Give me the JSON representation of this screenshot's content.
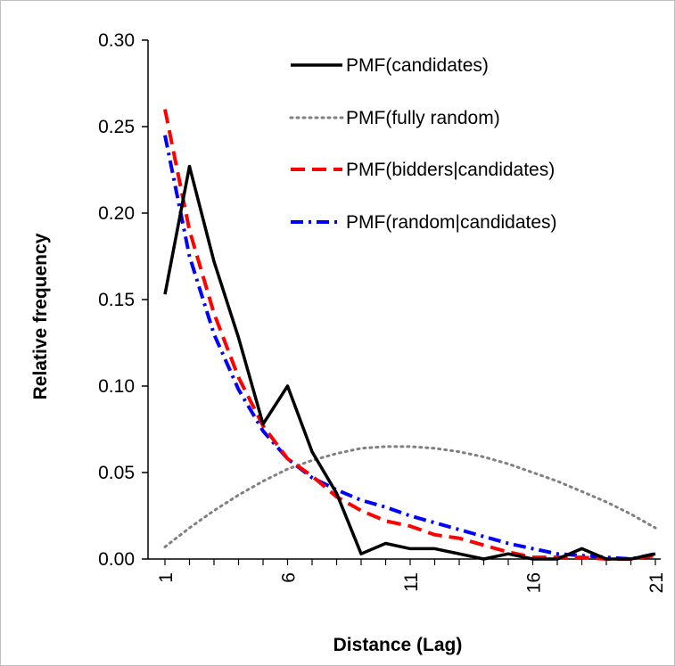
{
  "chart_data": {
    "type": "line",
    "xlabel": "Distance (Lag)",
    "ylabel": "Relative frequency",
    "xlim": [
      1,
      21
    ],
    "ylim": [
      0,
      0.3
    ],
    "x_ticks": [
      1,
      6,
      11,
      16,
      21
    ],
    "y_ticks": [
      "0.00",
      "0.05",
      "0.10",
      "0.15",
      "0.20",
      "0.25",
      "0.30"
    ],
    "legend_position": "top-right",
    "grid": false,
    "series": [
      {
        "name": "PMF(candidates)",
        "color": "#000000",
        "style": "solid",
        "x": [
          1,
          2,
          3,
          4,
          5,
          6,
          7,
          8,
          9,
          10,
          11,
          12,
          13,
          14,
          15,
          16,
          17,
          18,
          19,
          20,
          21
        ],
        "values": [
          0.153,
          0.227,
          0.172,
          0.128,
          0.078,
          0.1,
          0.062,
          0.038,
          0.003,
          0.009,
          0.006,
          0.006,
          0.003,
          0.0,
          0.003,
          0.0,
          0.0,
          0.006,
          0.0,
          0.0,
          0.003
        ]
      },
      {
        "name": "PMF(fully random)",
        "color": "#808080",
        "style": "dotted",
        "x": [
          1,
          2,
          3,
          4,
          5,
          6,
          7,
          8,
          9,
          10,
          11,
          12,
          13,
          14,
          15,
          16,
          17,
          18,
          19,
          20,
          21
        ],
        "values": [
          0.007,
          0.018,
          0.028,
          0.037,
          0.045,
          0.052,
          0.057,
          0.061,
          0.064,
          0.065,
          0.065,
          0.064,
          0.062,
          0.059,
          0.055,
          0.05,
          0.045,
          0.039,
          0.033,
          0.026,
          0.018
        ]
      },
      {
        "name": "PMF(bidders|candidates)",
        "color": "#ff0000",
        "style": "dashed",
        "x": [
          1,
          2,
          3,
          4,
          5,
          6,
          7,
          8,
          9,
          10,
          11,
          12,
          13,
          14,
          15,
          16,
          17,
          18,
          19,
          20,
          21
        ],
        "values": [
          0.26,
          0.19,
          0.142,
          0.105,
          0.077,
          0.058,
          0.048,
          0.036,
          0.028,
          0.022,
          0.019,
          0.014,
          0.012,
          0.008,
          0.004,
          0.001,
          0.001,
          0.001,
          0.0,
          0.0,
          0.002
        ]
      },
      {
        "name": "PMF(random|candidates)",
        "color": "#0000ff",
        "style": "dashdot",
        "x": [
          1,
          2,
          3,
          4,
          5,
          6,
          7,
          8,
          9,
          10,
          11,
          12,
          13,
          14,
          15,
          16,
          17,
          18,
          19,
          20,
          21
        ],
        "values": [
          0.245,
          0.175,
          0.13,
          0.098,
          0.074,
          0.058,
          0.047,
          0.04,
          0.034,
          0.03,
          0.025,
          0.021,
          0.017,
          0.013,
          0.009,
          0.006,
          0.003,
          0.002,
          0.001,
          0.0,
          0.003
        ]
      }
    ]
  }
}
